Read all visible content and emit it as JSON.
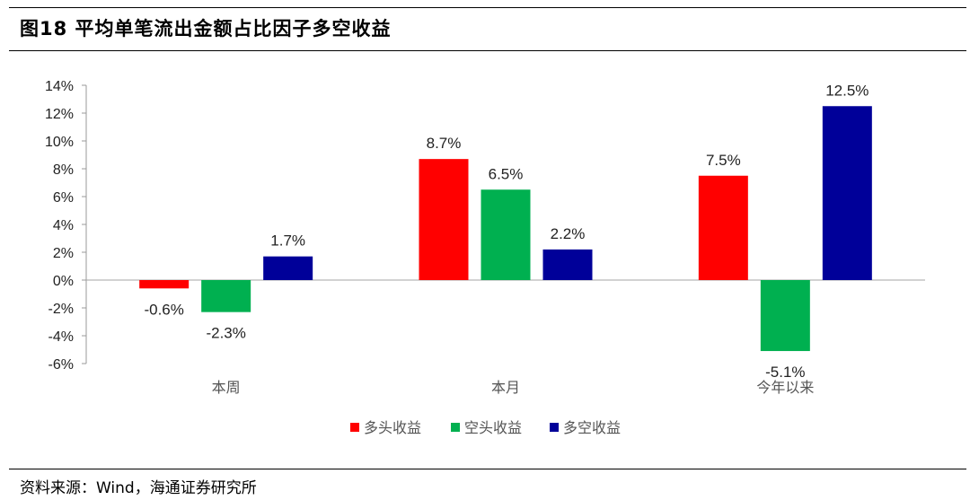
{
  "figure": {
    "title": "图18 平均单笔流出金额占比因子多空收益",
    "source": "资料来源：Wind，海通证券研究所"
  },
  "colors": {
    "long": "#ff0000",
    "short": "#00b050",
    "long_short": "#000099"
  },
  "chart_data": {
    "type": "bar",
    "categories": [
      "本周",
      "本月",
      "今年以来"
    ],
    "series": [
      {
        "name": "多头收益",
        "values": [
          -0.6,
          8.7,
          7.5
        ]
      },
      {
        "name": "空头收益",
        "values": [
          -2.3,
          6.5,
          -5.1
        ]
      },
      {
        "name": "多空收益",
        "values": [
          1.7,
          2.2,
          12.5
        ]
      }
    ],
    "data_labels": [
      [
        "-0.6%",
        "8.7%",
        "7.5%"
      ],
      [
        "-2.3%",
        "6.5%",
        "-5.1%"
      ],
      [
        "1.7%",
        "2.2%",
        "12.5%"
      ]
    ],
    "ylim": [
      -6,
      14
    ],
    "yticks": [
      14,
      12,
      10,
      8,
      6,
      4,
      2,
      0,
      -2,
      -4,
      -6
    ],
    "ytick_labels": [
      "14%",
      "12%",
      "10%",
      "8%",
      "6%",
      "4%",
      "2%",
      "0%",
      "-2%",
      "-4%",
      "-6%"
    ],
    "legend_position": "bottom",
    "grid": false
  }
}
